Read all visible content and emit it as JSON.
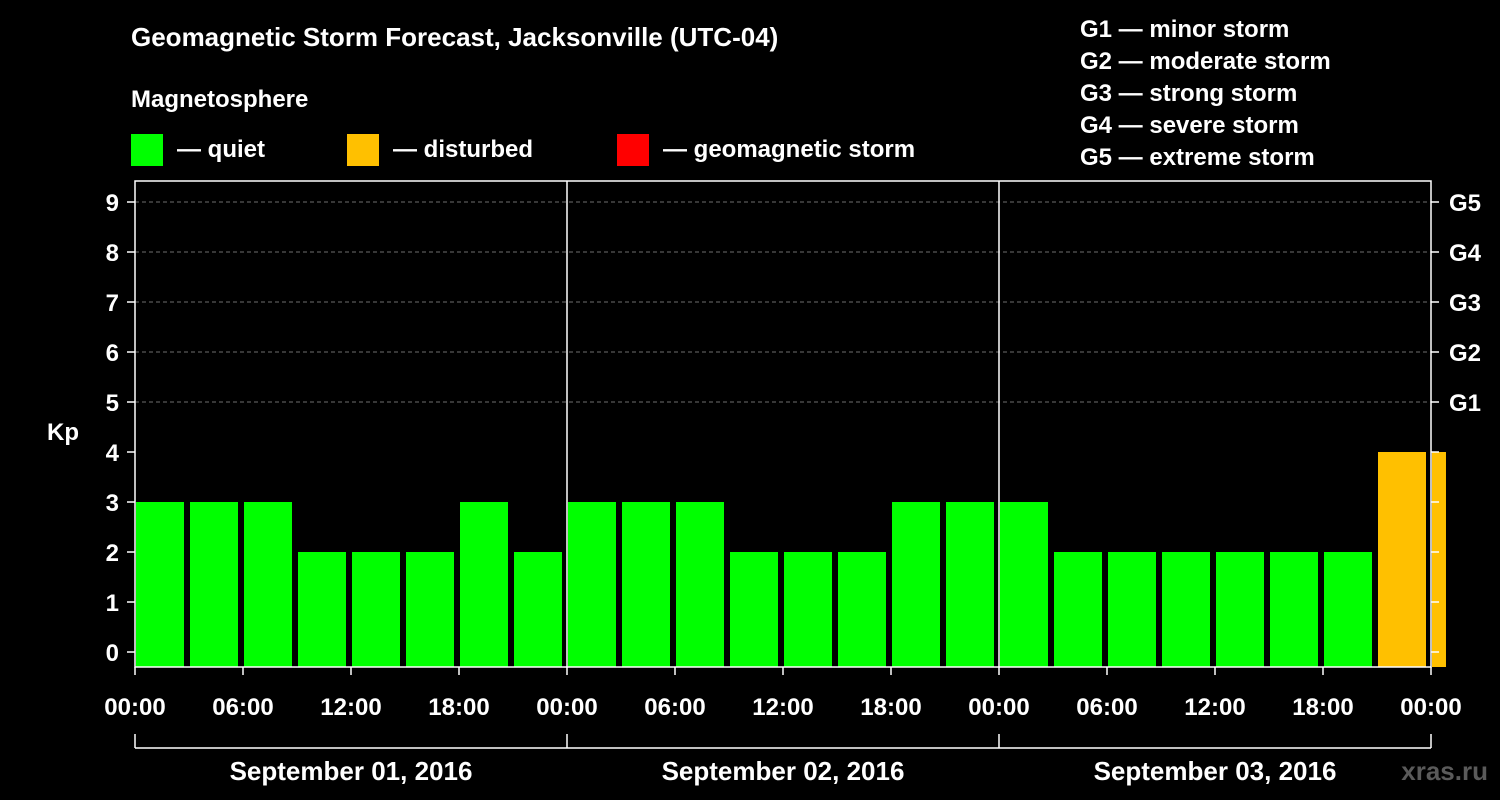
{
  "chart_data": {
    "type": "bar",
    "title": "Geomagnetic Storm Forecast, Jacksonville (UTC-04)",
    "subtitle": "Magnetosphere",
    "ylabel": "Kp",
    "ylim": [
      0,
      9
    ],
    "yticks": [
      "0",
      "1",
      "2",
      "3",
      "4",
      "5",
      "6",
      "7",
      "8",
      "9"
    ],
    "right_axis": [
      {
        "kp": 5,
        "label": "G1"
      },
      {
        "kp": 6,
        "label": "G2"
      },
      {
        "kp": 7,
        "label": "G3"
      },
      {
        "kp": 8,
        "label": "G4"
      },
      {
        "kp": 9,
        "label": "G5"
      }
    ],
    "legend": [
      {
        "label": "— quiet",
        "color": "#00ff00"
      },
      {
        "label": "— disturbed",
        "color": "#ffc000"
      },
      {
        "label": "— geomagnetic storm",
        "color": "#ff0000"
      }
    ],
    "storm_scale": [
      "G1 — minor storm",
      "G2 — moderate storm",
      "G3 — strong storm",
      "G4 — severe storm",
      "G5 — extreme storm"
    ],
    "xtick_labels": [
      "00:00",
      "06:00",
      "12:00",
      "18:00",
      "00:00",
      "06:00",
      "12:00",
      "18:00",
      "00:00",
      "06:00",
      "12:00",
      "18:00",
      "00:00"
    ],
    "days": [
      "September 01, 2016",
      "September 02, 2016",
      "September 03, 2016"
    ],
    "bar_hours": 3,
    "values": [
      3,
      3,
      3,
      2,
      2,
      2,
      3,
      2,
      3,
      3,
      3,
      2,
      2,
      2,
      3,
      3,
      3,
      2,
      2,
      2,
      2,
      2,
      2,
      4,
      4
    ],
    "status": [
      "quiet",
      "quiet",
      "quiet",
      "quiet",
      "quiet",
      "quiet",
      "quiet",
      "quiet",
      "quiet",
      "quiet",
      "quiet",
      "quiet",
      "quiet",
      "quiet",
      "quiet",
      "quiet",
      "quiet",
      "quiet",
      "quiet",
      "quiet",
      "quiet",
      "quiet",
      "quiet",
      "disturbed",
      "disturbed"
    ],
    "last_bar_fraction": 0.333,
    "colors": {
      "quiet": "#00ff00",
      "disturbed": "#ffc000",
      "storm": "#ff0000"
    }
  },
  "watermark": "xras.ru"
}
